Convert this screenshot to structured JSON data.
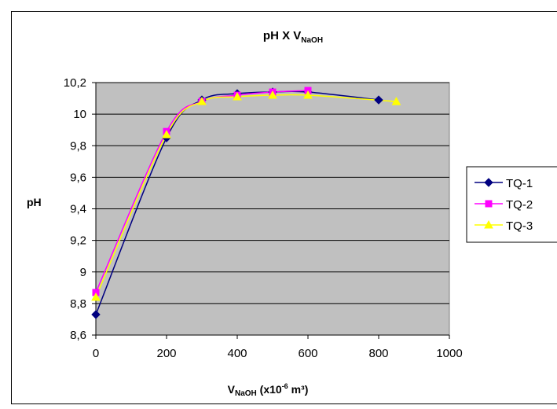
{
  "chart_data": {
    "type": "line",
    "title": "pH X V",
    "title_sub": "NaOH",
    "xlabel_main": "V",
    "xlabel_sub": "NaOH",
    "xlabel_rest": "  (x10",
    "xlabel_sup": "-6",
    "xlabel_end": " m³)",
    "ylabel": "pH",
    "xlim": [
      0,
      1000
    ],
    "ylim": [
      8.6,
      10.2
    ],
    "x_ticks": [
      0,
      200,
      400,
      600,
      800,
      1000
    ],
    "y_ticks": [
      8.6,
      8.8,
      9.0,
      9.2,
      9.4,
      9.6,
      9.8,
      10.0,
      10.2
    ],
    "x_tick_labels": [
      "0",
      "200",
      "400",
      "600",
      "800",
      "1000"
    ],
    "y_tick_labels": [
      "8,6",
      "8,8",
      "9",
      "9,2",
      "9,4",
      "9,6",
      "9,8",
      "10",
      "10,2"
    ],
    "plot_background": "#C0C0C0",
    "gridlines": "horizontal",
    "legend_position": "right",
    "series": [
      {
        "name": "TQ-1",
        "color": "#000080",
        "marker": "diamond",
        "x": [
          0,
          200,
          300,
          400,
          500,
          600,
          800
        ],
        "y": [
          8.73,
          9.85,
          10.09,
          10.13,
          10.14,
          10.14,
          10.09
        ]
      },
      {
        "name": "TQ-2",
        "color": "#FF00FF",
        "marker": "square",
        "x": [
          0,
          200,
          300,
          400,
          500,
          600
        ],
        "y": [
          8.87,
          9.89,
          10.08,
          10.12,
          10.14,
          10.15
        ]
      },
      {
        "name": "TQ-3",
        "color": "#FFFF00",
        "marker": "triangle",
        "x": [
          0,
          200,
          300,
          400,
          500,
          600,
          850
        ],
        "y": [
          8.84,
          9.87,
          10.08,
          10.11,
          10.12,
          10.12,
          10.08
        ]
      }
    ]
  }
}
